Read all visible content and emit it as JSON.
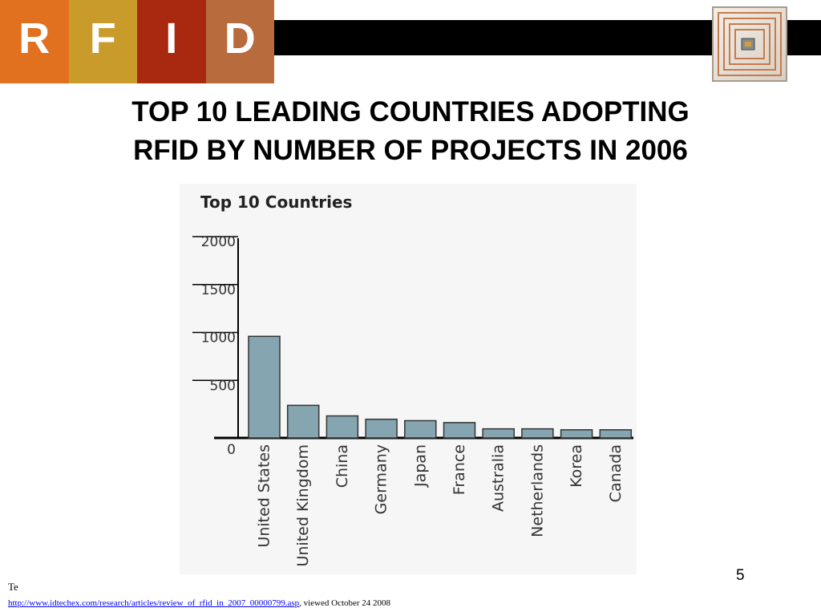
{
  "header": {
    "letters": [
      {
        "text": "R",
        "color": "#e2711f"
      },
      {
        "text": "F",
        "color": "#c99b2b"
      },
      {
        "text": "I",
        "color": "#a8290f"
      },
      {
        "text": "D",
        "color": "#b86b3c"
      }
    ],
    "bar_color": "#000000",
    "logo_icon": "rfid-tag-icon"
  },
  "slide": {
    "title_line1": "TOP 10 LEADING COUNTRIES ADOPTING",
    "title_line2": "RFID BY NUMBER OF PROJECTS IN 2006",
    "page_number": "5"
  },
  "footer": {
    "te": "Te",
    "link_text": "http://www.idtechex.com/research/articles/review_of_rfid_in_2007_00000799.asp",
    "viewed_text": ",  viewed  October 24 2008"
  },
  "chart_data": {
    "type": "bar",
    "title": "Top 10 Countries",
    "xlabel": "",
    "ylabel": "",
    "categories": [
      "United States",
      "United Kingdom",
      "China",
      "Germany",
      "Japan",
      "France",
      "Australia",
      "Netherlands",
      "Korea",
      "Canada"
    ],
    "values": [
      1060,
      340,
      230,
      195,
      180,
      160,
      95,
      95,
      85,
      85
    ],
    "ylim": [
      0,
      2000
    ],
    "yticks": [
      0,
      500,
      1000,
      1500,
      2000
    ],
    "grid": false,
    "legend": "none",
    "bar_color": "#85a5b0",
    "bar_edge_color": "#333333"
  }
}
